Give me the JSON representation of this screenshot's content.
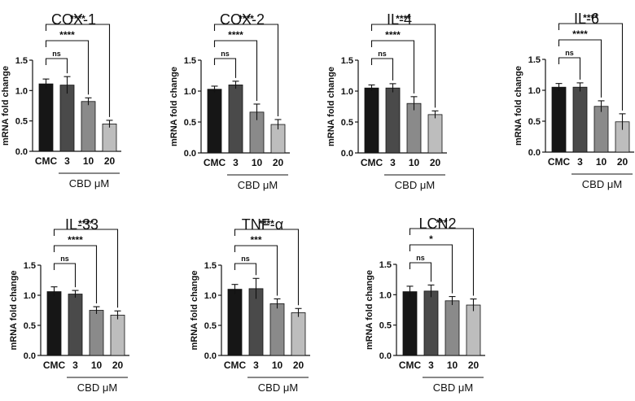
{
  "figure": {
    "group_label": "CBD μM",
    "bar_colors": [
      "#161616",
      "#4a4a4a",
      "#8a8a8a",
      "#bdbdbd"
    ],
    "error_color": "#111111"
  },
  "chart_data": [
    {
      "type": "bar",
      "title": "COX-1",
      "ylabel": "mRNA fold change",
      "ylim": [
        0,
        1.5
      ],
      "yticks": [
        "0.0",
        "0.5",
        "1.0",
        "1.5"
      ],
      "categories": [
        "CMC",
        "3",
        "10",
        "20"
      ],
      "values": [
        1.11,
        1.09,
        0.82,
        0.45
      ],
      "errors": [
        0.08,
        0.14,
        0.06,
        0.06
      ],
      "significance": [
        {
          "compare": [
            "CMC",
            "3"
          ],
          "label": "ns"
        },
        {
          "compare": [
            "CMC",
            "10"
          ],
          "label": "****"
        },
        {
          "compare": [
            "CMC",
            "20"
          ],
          "label": "****"
        }
      ],
      "group_label": "CBD μM"
    },
    {
      "type": "bar",
      "title": "COX-2",
      "ylabel": "mRNA fold change",
      "ylim": [
        0,
        1.5
      ],
      "yticks": [
        "0.0",
        "0.5",
        "1.0",
        "1.5"
      ],
      "categories": [
        "CMC",
        "3",
        "10",
        "20"
      ],
      "values": [
        1.03,
        1.1,
        0.66,
        0.46
      ],
      "errors": [
        0.05,
        0.06,
        0.13,
        0.08
      ],
      "significance": [
        {
          "compare": [
            "CMC",
            "3"
          ],
          "label": "ns"
        },
        {
          "compare": [
            "CMC",
            "10"
          ],
          "label": "****"
        },
        {
          "compare": [
            "CMC",
            "20"
          ],
          "label": "****"
        }
      ],
      "group_label": "CBD μM"
    },
    {
      "type": "bar",
      "title": "IL-4",
      "ylabel": "mRNA fold change",
      "ylim": [
        0,
        1.5
      ],
      "yticks": [
        "0.0",
        "0.5",
        "1.0",
        "1.5"
      ],
      "categories": [
        "CMC",
        "3",
        "10",
        "20"
      ],
      "values": [
        1.05,
        1.05,
        0.8,
        0.62
      ],
      "errors": [
        0.05,
        0.07,
        0.11,
        0.06
      ],
      "significance": [
        {
          "compare": [
            "CMC",
            "3"
          ],
          "label": "ns"
        },
        {
          "compare": [
            "CMC",
            "10"
          ],
          "label": "****"
        },
        {
          "compare": [
            "CMC",
            "20"
          ],
          "label": "****"
        }
      ],
      "group_label": "CBD μM"
    },
    {
      "type": "bar",
      "title": "IL-6",
      "ylabel": "mRNA fold change",
      "ylim": [
        0,
        1.5
      ],
      "yticks": [
        "0.0",
        "0.5",
        "1.0",
        "1.5"
      ],
      "categories": [
        "CMC",
        "3",
        "10",
        "20"
      ],
      "values": [
        1.05,
        1.05,
        0.74,
        0.49
      ],
      "errors": [
        0.06,
        0.07,
        0.09,
        0.13
      ],
      "significance": [
        {
          "compare": [
            "CMC",
            "3"
          ],
          "label": "ns"
        },
        {
          "compare": [
            "CMC",
            "10"
          ],
          "label": "****"
        },
        {
          "compare": [
            "CMC",
            "20"
          ],
          "label": "****"
        }
      ],
      "group_label": "CBD μM"
    },
    {
      "type": "bar",
      "title": "IL-33",
      "ylabel": "mRNA fold change",
      "ylim": [
        0,
        1.5
      ],
      "yticks": [
        "0.0",
        "0.5",
        "1.0",
        "1.5"
      ],
      "categories": [
        "CMC",
        "3",
        "10",
        "20"
      ],
      "values": [
        1.06,
        1.02,
        0.75,
        0.67
      ],
      "errors": [
        0.08,
        0.06,
        0.06,
        0.07
      ],
      "significance": [
        {
          "compare": [
            "CMC",
            "3"
          ],
          "label": "ns"
        },
        {
          "compare": [
            "CMC",
            "10"
          ],
          "label": "****"
        },
        {
          "compare": [
            "CMC",
            "20"
          ],
          "label": "****"
        }
      ],
      "group_label": "CBD μM"
    },
    {
      "type": "bar",
      "title": "TNF-α",
      "ylabel": "mRNA fold change",
      "ylim": [
        0,
        1.5
      ],
      "yticks": [
        "0.0",
        "0.5",
        "1.0",
        "1.5"
      ],
      "categories": [
        "CMC",
        "3",
        "10",
        "20"
      ],
      "values": [
        1.1,
        1.11,
        0.86,
        0.71
      ],
      "errors": [
        0.08,
        0.17,
        0.08,
        0.07
      ],
      "significance": [
        {
          "compare": [
            "CMC",
            "3"
          ],
          "label": "ns"
        },
        {
          "compare": [
            "CMC",
            "10"
          ],
          "label": "***"
        },
        {
          "compare": [
            "CMC",
            "20"
          ],
          "label": "****"
        }
      ],
      "group_label": "CBD μM"
    },
    {
      "type": "bar",
      "title": "LCN2",
      "ylabel": "mRNA fold change",
      "ylim": [
        0,
        1.5
      ],
      "yticks": [
        "0.0",
        "0.5",
        "1.0",
        "1.5"
      ],
      "categories": [
        "CMC",
        "3",
        "10",
        "20"
      ],
      "values": [
        1.05,
        1.06,
        0.9,
        0.83
      ],
      "errors": [
        0.09,
        0.1,
        0.07,
        0.1
      ],
      "significance": [
        {
          "compare": [
            "CMC",
            "3"
          ],
          "label": "ns"
        },
        {
          "compare": [
            "CMC",
            "10"
          ],
          "label": "*"
        },
        {
          "compare": [
            "CMC",
            "20"
          ],
          "label": "***"
        }
      ],
      "group_label": "CBD μM"
    }
  ]
}
